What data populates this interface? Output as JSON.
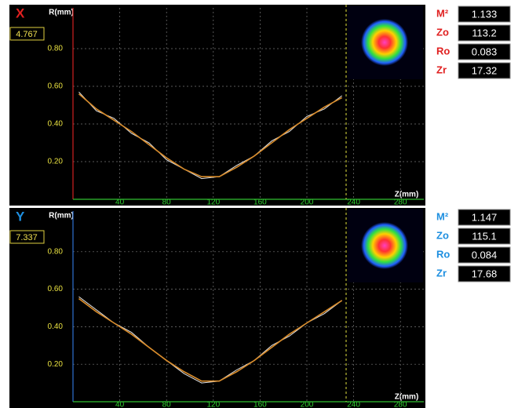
{
  "chart_data": [
    {
      "type": "line",
      "title": "X",
      "title_color": "#e02020",
      "readout": "4.767",
      "ylabel": "R(mm)",
      "xlabel": "Z(mm)",
      "axis_color": "#d02020",
      "x": [
        5,
        20,
        35,
        50,
        65,
        80,
        95,
        110,
        125,
        140,
        155,
        170,
        185,
        200,
        215,
        230
      ],
      "series": [
        {
          "color": "#e6e6e6",
          "values": [
            0.57,
            0.47,
            0.43,
            0.35,
            0.3,
            0.21,
            0.16,
            0.11,
            0.12,
            0.18,
            0.23,
            0.31,
            0.36,
            0.44,
            0.48,
            0.55
          ]
        },
        {
          "color": "#d98c2b",
          "values": [
            0.56,
            0.48,
            0.42,
            0.36,
            0.29,
            0.22,
            0.16,
            0.12,
            0.12,
            0.17,
            0.23,
            0.3,
            0.37,
            0.43,
            0.49,
            0.54
          ]
        }
      ],
      "xlim": [
        0,
        300
      ],
      "ylim": [
        0,
        1
      ],
      "xticks": [
        40,
        80,
        120,
        160,
        200,
        240,
        280
      ],
      "yticks": [
        {
          "value": 0.2,
          "label": "0.20"
        },
        {
          "value": 0.4,
          "label": "0.40"
        },
        {
          "value": 0.6,
          "label": "0.60"
        },
        {
          "value": 0.8,
          "label": "0.80"
        }
      ],
      "grid": true,
      "params": [
        {
          "label": "M²",
          "value": "1.133"
        },
        {
          "label": "Zo",
          "value": "113.2"
        },
        {
          "label": "Ro",
          "value": "0.083"
        },
        {
          "label": "Zr",
          "value": "17.32"
        }
      ]
    },
    {
      "type": "line",
      "title": "Y",
      "title_color": "#1e8fe0",
      "readout": "7.337",
      "ylabel": "R(mm)",
      "xlabel": "Z(mm)",
      "axis_color": "#3070d0",
      "x": [
        5,
        20,
        35,
        50,
        65,
        80,
        95,
        110,
        125,
        140,
        155,
        170,
        185,
        200,
        215,
        230
      ],
      "series": [
        {
          "color": "#e6e6e6",
          "values": [
            0.56,
            0.49,
            0.42,
            0.37,
            0.29,
            0.22,
            0.15,
            0.1,
            0.11,
            0.17,
            0.22,
            0.3,
            0.35,
            0.42,
            0.47,
            0.54
          ]
        },
        {
          "color": "#d98c2b",
          "values": [
            0.55,
            0.48,
            0.42,
            0.36,
            0.29,
            0.22,
            0.16,
            0.11,
            0.11,
            0.16,
            0.22,
            0.29,
            0.36,
            0.42,
            0.48,
            0.54
          ]
        }
      ],
      "xlim": [
        0,
        300
      ],
      "ylim": [
        0,
        1
      ],
      "xticks": [
        40,
        80,
        120,
        160,
        200,
        240,
        280
      ],
      "yticks": [
        {
          "value": 0.2,
          "label": "0.20"
        },
        {
          "value": 0.4,
          "label": "0.40"
        },
        {
          "value": 0.6,
          "label": "0.60"
        },
        {
          "value": 0.8,
          "label": "0.80"
        }
      ],
      "grid": true,
      "params": [
        {
          "label": "M²",
          "value": "1.147"
        },
        {
          "label": "Zo",
          "value": "115.1"
        },
        {
          "label": "Ro",
          "value": "0.084"
        },
        {
          "label": "Zr",
          "value": "17.68"
        }
      ]
    }
  ]
}
